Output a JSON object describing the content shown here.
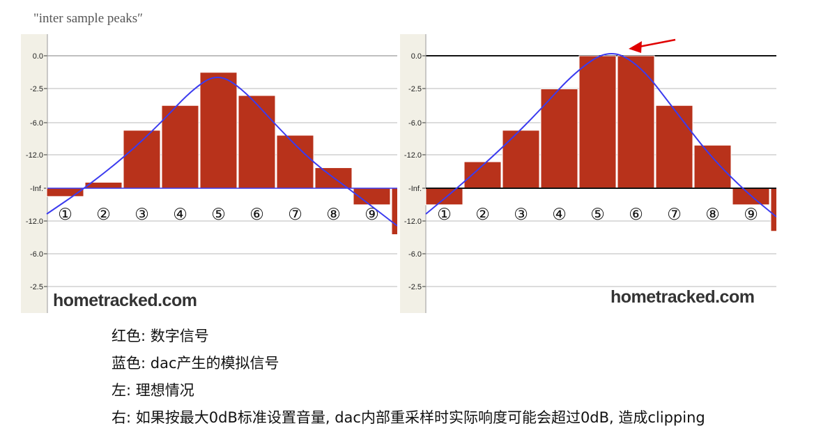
{
  "heading": "\"inter sample peaks″",
  "watermark": "hometracked.com",
  "notes": [
    "红色: 数字信号",
    "蓝色: dac产生的模拟信号",
    "左: 理想情况",
    "右: 如果按最大0dB标准设置音量, dac内部重采样时实际响度可能会超过0dB, 造成clipping"
  ],
  "colors": {
    "bar": "#b8321b",
    "curve": "#3b3bef",
    "arrow": "#e00000",
    "panel_bg": "#f2f0e6",
    "grid": "#c8c8c8"
  },
  "chart_data": [
    {
      "type": "bar",
      "y_tick_labels": [
        "0.0",
        "-2.5",
        "-6.0",
        "-12.0",
        "-Inf.",
        "-12.0",
        "-6.0",
        "-2.5"
      ],
      "sample_labels": [
        "①",
        "②",
        "③",
        "④",
        "⑤",
        "⑥",
        "⑦",
        "⑧",
        "⑨"
      ],
      "bar_levels": [
        -0.25,
        0.18,
        1.75,
        2.5,
        3.5,
        2.8,
        1.6,
        0.62,
        -0.5,
        -1.4
      ],
      "curve": "blue analog reconstruction stays below 0.0",
      "grid": true
    },
    {
      "type": "bar",
      "y_tick_labels": [
        "0.0",
        "-2.5",
        "-6.0",
        "-12.0",
        "-Inf.",
        "-12.0",
        "-6.0",
        "-2.5"
      ],
      "sample_labels": [
        "①",
        "②",
        "③",
        "④",
        "⑤",
        "⑥",
        "⑦",
        "⑧",
        "⑨"
      ],
      "bar_levels": [
        -0.5,
        0.8,
        1.75,
        3.0,
        4.0,
        4.0,
        2.5,
        1.3,
        -0.5,
        -1.3
      ],
      "curve": "blue analog reconstruction peaks above 0.0",
      "annotation": "red arrow at overshoot",
      "grid": true
    }
  ]
}
